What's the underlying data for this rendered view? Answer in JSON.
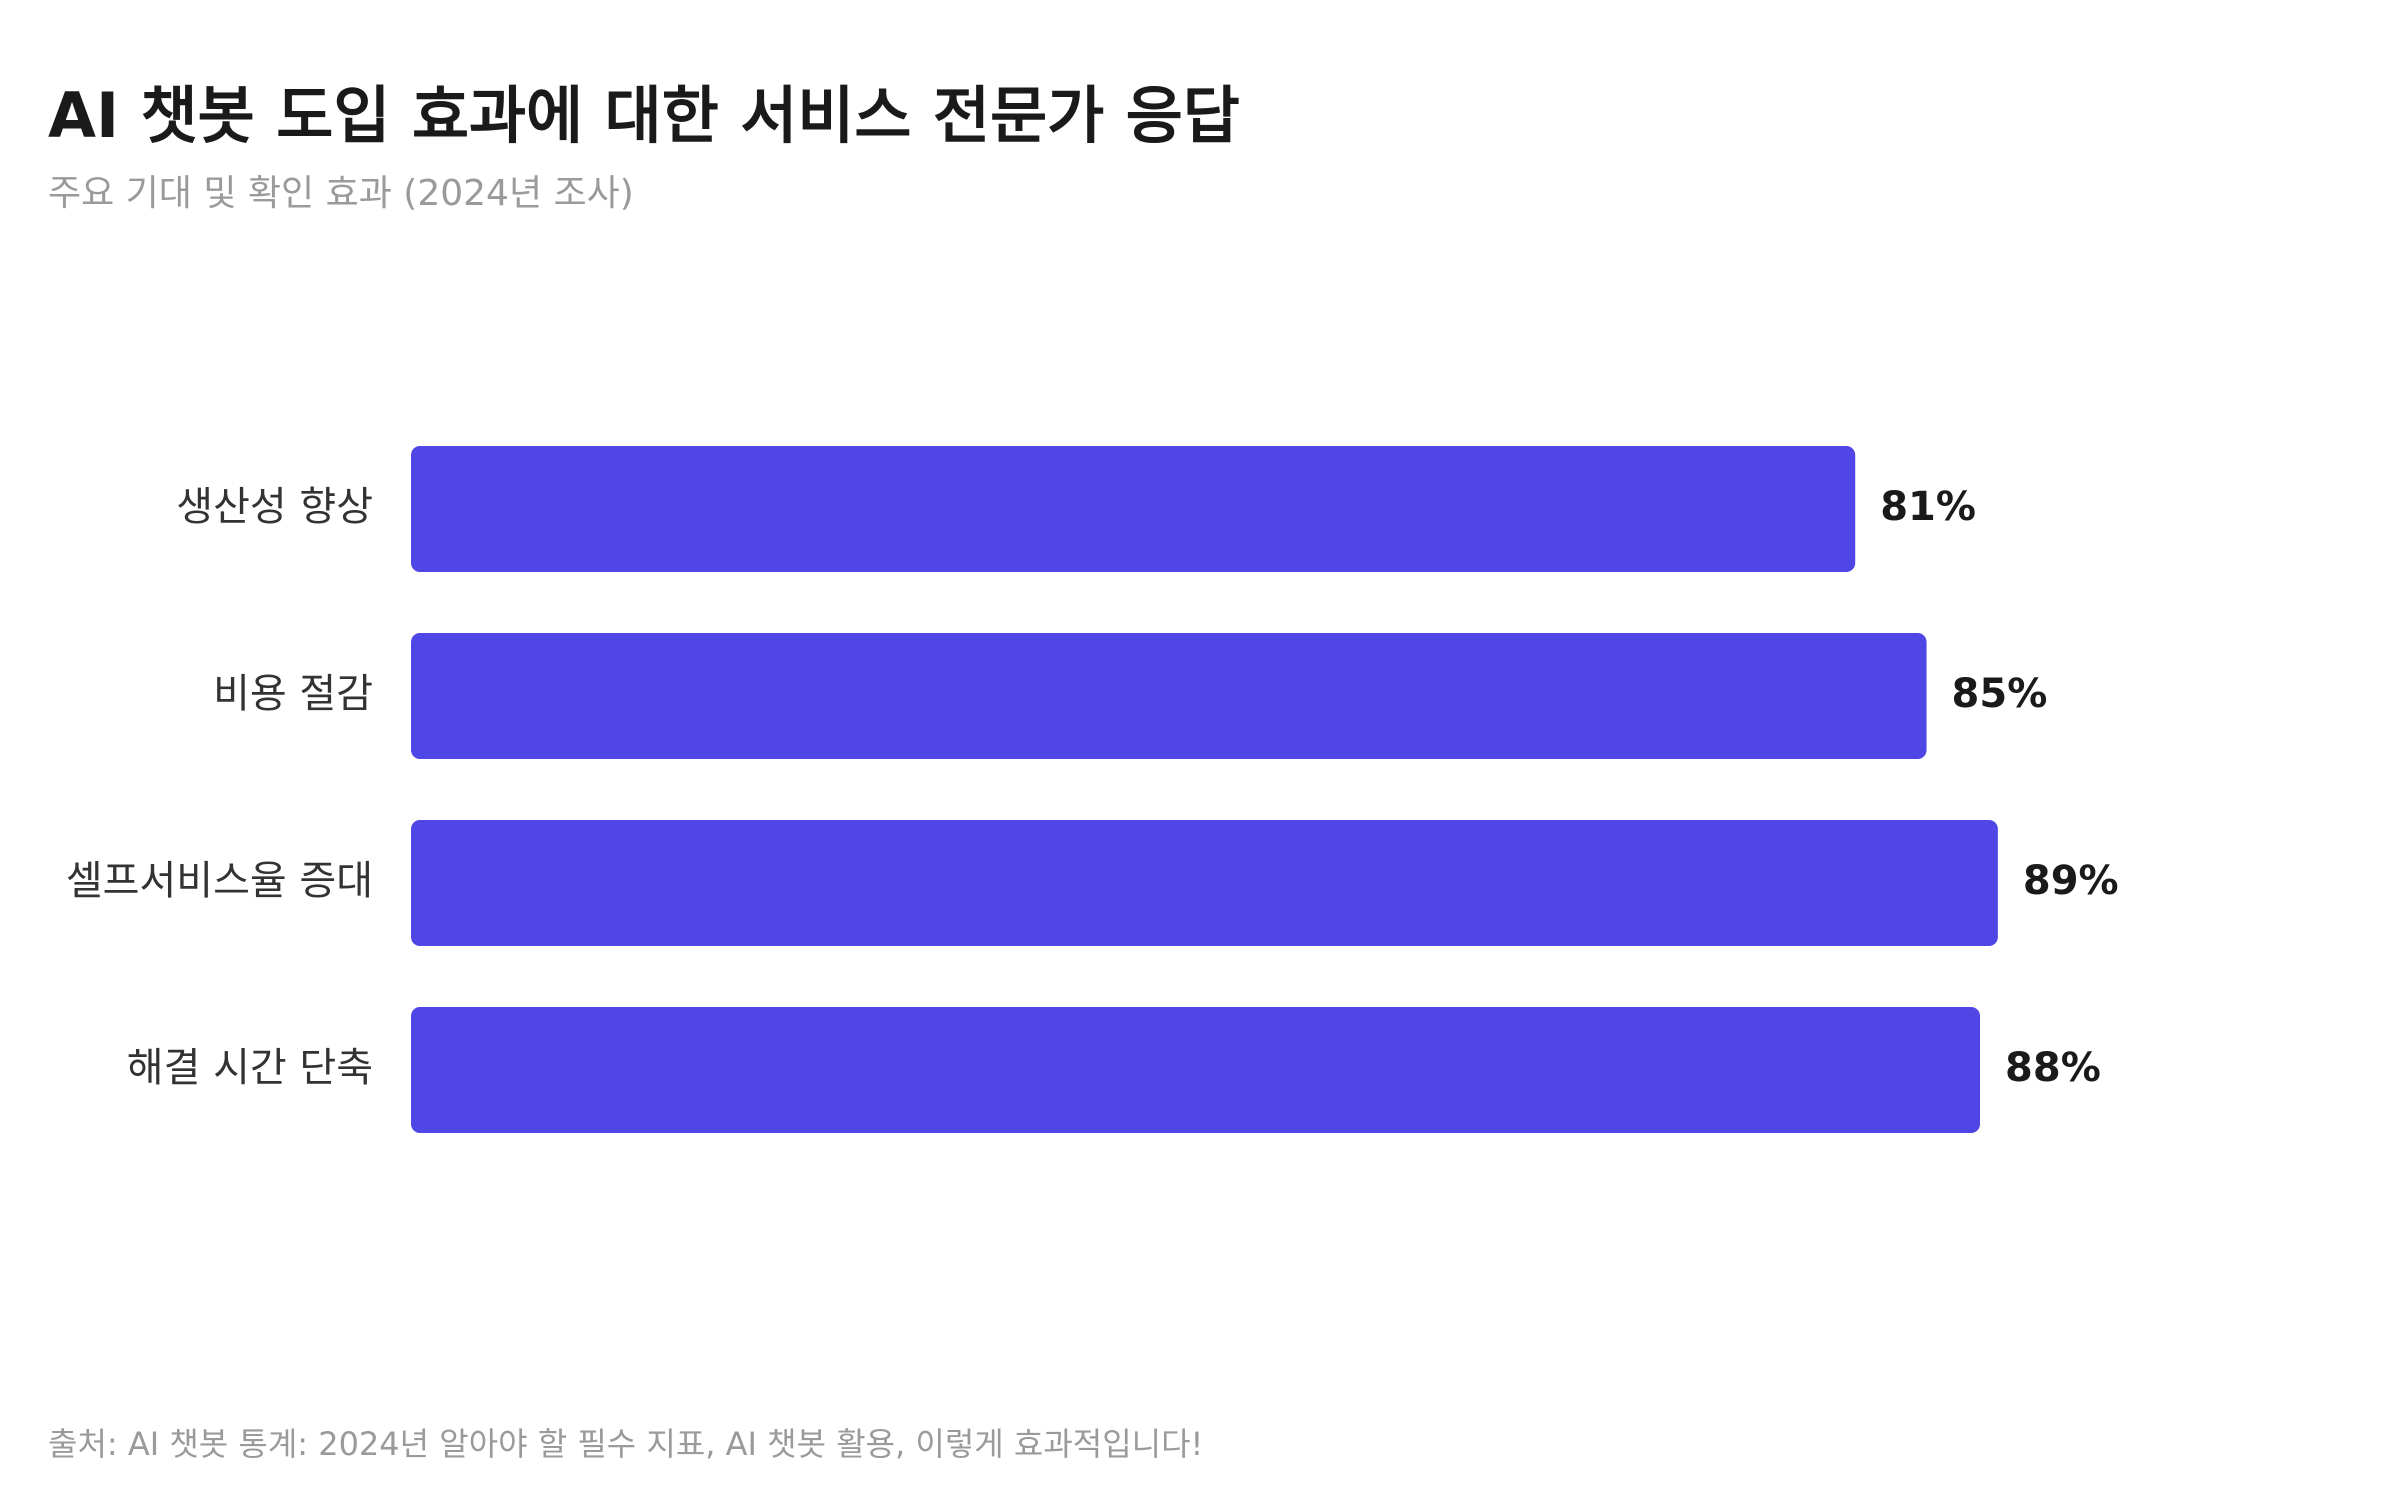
{
  "chart_data": {
    "type": "bar",
    "orientation": "horizontal",
    "title": "AI 챗봇 도입 효과에 대한 서비스 전문가 응답",
    "subtitle": "주요 기대 및 확인 효과 (2024년 조사)",
    "categories": [
      "생산성 향상",
      "비용 절감",
      "셀프서비스율 증대",
      "해결 시간 단축"
    ],
    "values": [
      81,
      85,
      89,
      88
    ],
    "value_labels": [
      "81%",
      "85%",
      "89%",
      "88%"
    ],
    "color": "#5046e5",
    "xlim": [
      0,
      100
    ],
    "source": "출처: AI 챗봇 통계: 2024년 알아야 할 필수 지표, AI 챗봇 활용, 이렇게 효과적입니다!"
  }
}
